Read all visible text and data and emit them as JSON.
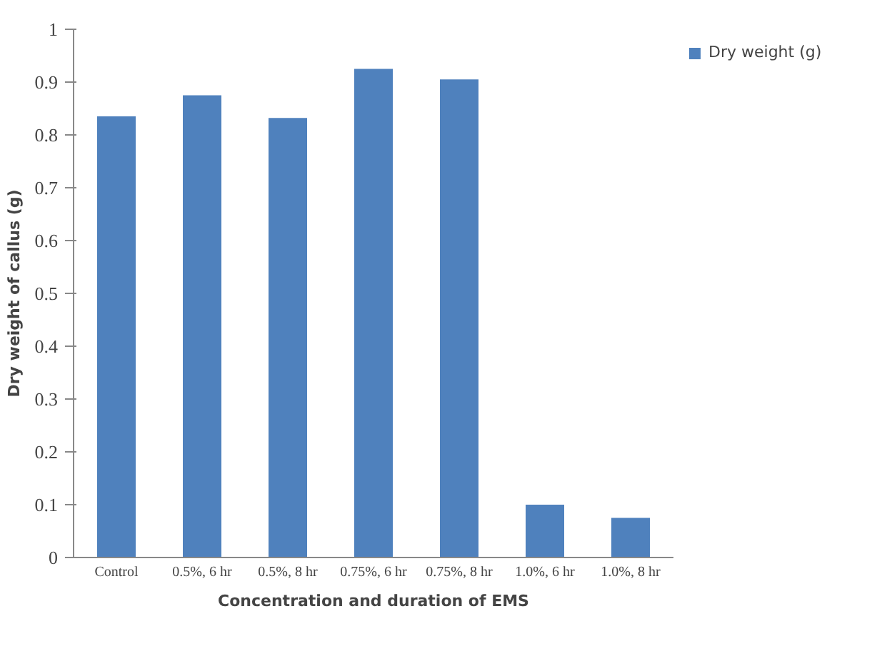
{
  "chart_data": {
    "type": "bar",
    "xlabel": "Concentration and duration of EMS",
    "ylabel": "Dry weight of callus (g)",
    "categories": [
      "Control",
      "0.5%, 6 hr",
      "0.5%, 8 hr",
      "0.75%, 6 hr",
      "0.75%, 8 hr",
      "1.0%, 6 hr",
      "1.0%, 8 hr"
    ],
    "series": [
      {
        "name": "Dry weight (g)",
        "color": "#4f81bd",
        "values": [
          0.835,
          0.875,
          0.832,
          0.925,
          0.905,
          0.1,
          0.075
        ]
      }
    ],
    "ylim": [
      0,
      1
    ],
    "yticks": [
      0,
      0.1,
      0.2,
      0.3,
      0.4,
      0.5,
      0.6,
      0.7,
      0.8,
      0.9,
      1
    ],
    "grid": false,
    "legend": "right"
  }
}
